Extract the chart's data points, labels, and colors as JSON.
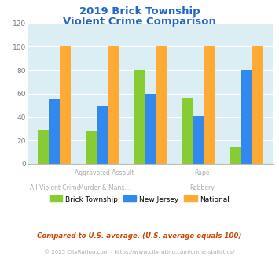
{
  "title_line1": "2019 Brick Township",
  "title_line2": "Violent Crime Comparison",
  "title_color": "#2266cc",
  "series": {
    "Brick Township": [
      29,
      28,
      80,
      56,
      15
    ],
    "New Jersey": [
      55,
      49,
      60,
      41,
      80
    ],
    "National": [
      100,
      100,
      100,
      100,
      100
    ]
  },
  "colors": {
    "Brick Township": "#88cc33",
    "New Jersey": "#3388ee",
    "National": "#ffaa33"
  },
  "ylim": [
    0,
    120
  ],
  "yticks": [
    0,
    20,
    40,
    60,
    80,
    100,
    120
  ],
  "plot_bg": "#daeef3",
  "grid_color": "#ffffff",
  "xlabel_row1": [
    "",
    "Aggravated Assault",
    "",
    "Rape",
    ""
  ],
  "xlabel_row2": [
    "All Violent Crime",
    "Murder & Mans...",
    "",
    "Robbery",
    ""
  ],
  "xlabel_color": "#aaaaaa",
  "footnote1": "Compared to U.S. average. (U.S. average equals 100)",
  "footnote2": "© 2025 CityRating.com - https://www.cityrating.com/crime-statistics/",
  "footnote1_color": "#cc4400",
  "footnote2_color": "#aaaaaa",
  "footnote2_url_color": "#3399cc"
}
